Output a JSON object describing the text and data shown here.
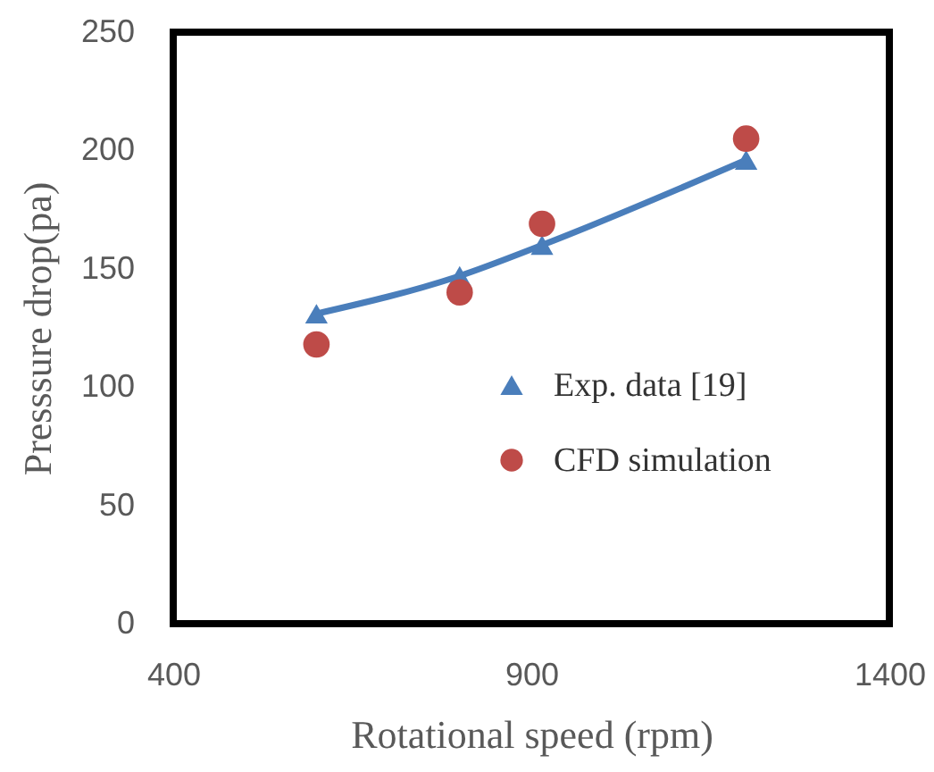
{
  "chart_data": {
    "type": "line",
    "xlabel": "Rotational speed (rpm)",
    "ylabel": "Presssure drop(pa)",
    "x": [
      600,
      800,
      915,
      1200
    ],
    "series": [
      {
        "name": "Exp. data [19]",
        "type": "line",
        "color": "#4a7ebb",
        "marker": "triangle",
        "values": [
          131,
          147,
          160,
          196
        ]
      },
      {
        "name": "CFD simulation",
        "type": "scatter",
        "color": "#be4b48",
        "marker": "circle",
        "values": [
          118,
          140,
          169,
          205
        ]
      }
    ],
    "xlim": [
      400,
      1400
    ],
    "xticks": [
      400,
      900,
      1400
    ],
    "ylim": [
      0,
      250
    ],
    "yticks": [
      0,
      50,
      100,
      150,
      200,
      250
    ],
    "grid": false,
    "legend": "right",
    "line_style": "solid"
  }
}
